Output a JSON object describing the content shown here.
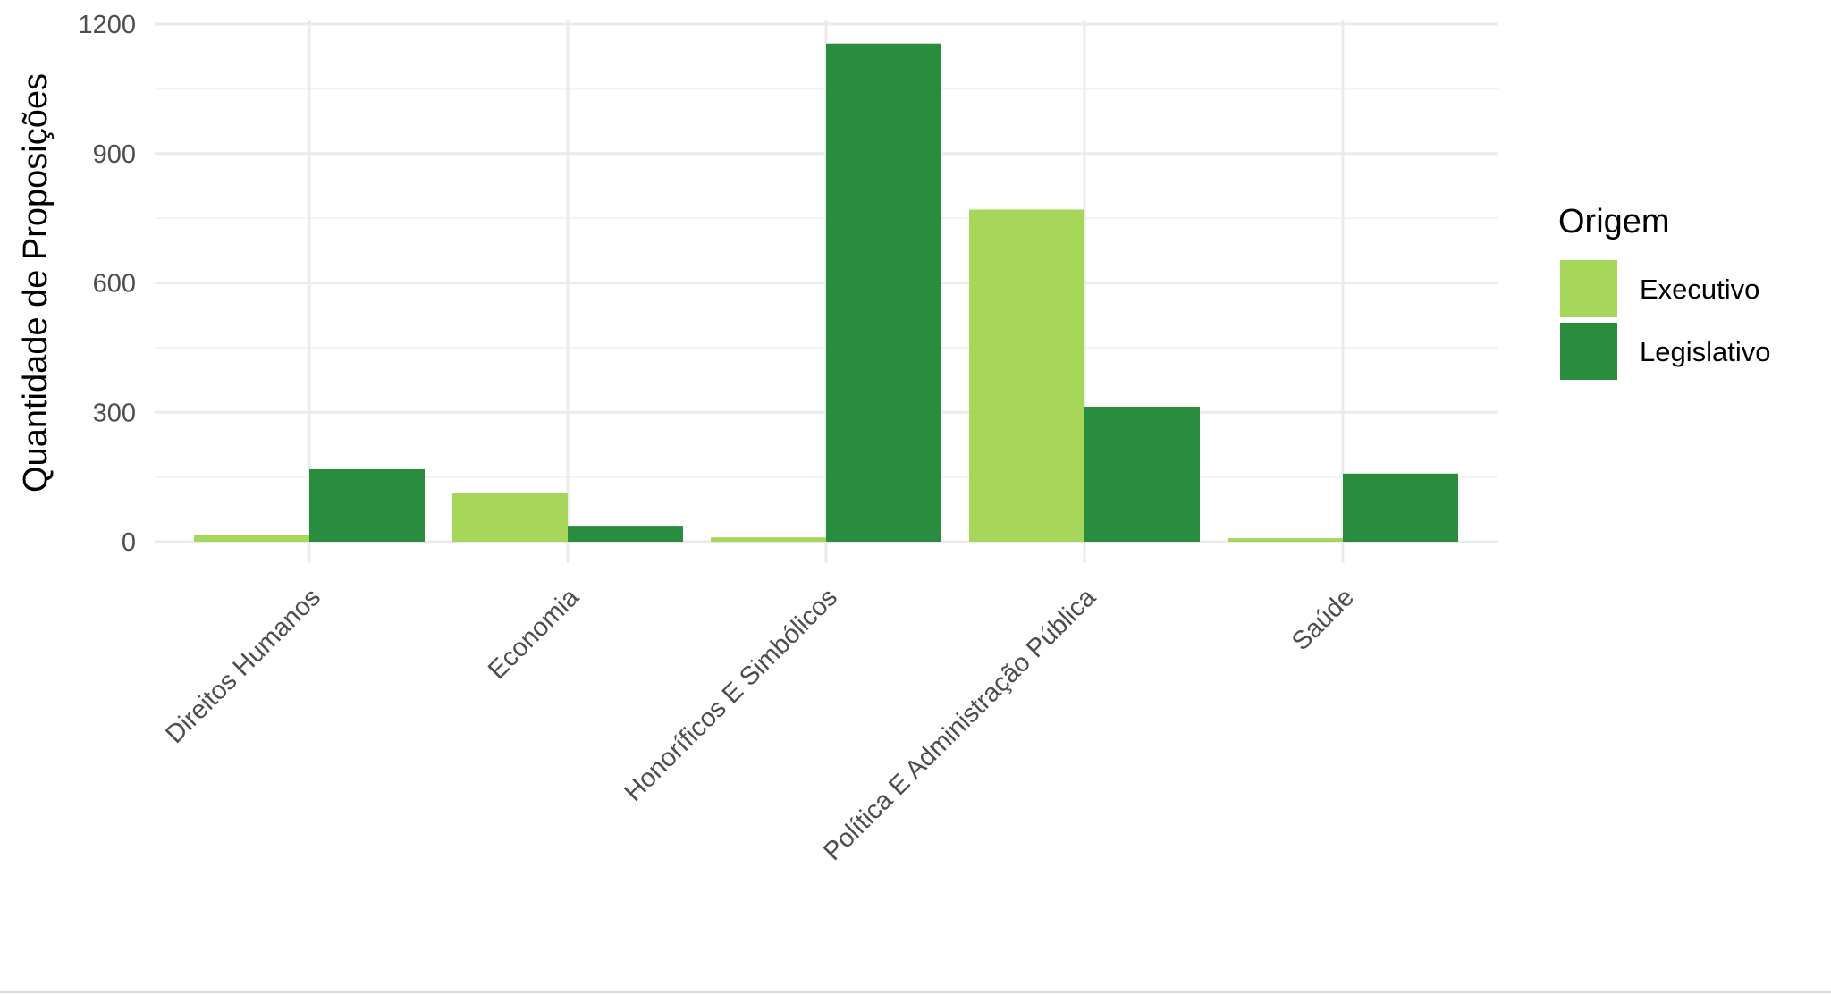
{
  "chart_data": {
    "type": "bar",
    "title": "",
    "xlabel": "",
    "ylabel": "Quantidade de Proposições",
    "categories": [
      "Direitos Humanos",
      "Economia",
      "Honoríficos E Simbólicos",
      "Política E Administração Pública",
      "Saúde"
    ],
    "series": [
      {
        "name": "Executivo",
        "color": "#a6d75b",
        "values": [
          15,
          113,
          10,
          770,
          8
        ]
      },
      {
        "name": "Legislativo",
        "color": "#2a8c3e",
        "values": [
          168,
          35,
          1155,
          313,
          158
        ]
      }
    ],
    "ylim": [
      0,
      1200
    ],
    "yticks": [
      0,
      300,
      600,
      900,
      1200
    ],
    "grid": true,
    "legend": {
      "title": "Origem",
      "position": "right"
    }
  }
}
